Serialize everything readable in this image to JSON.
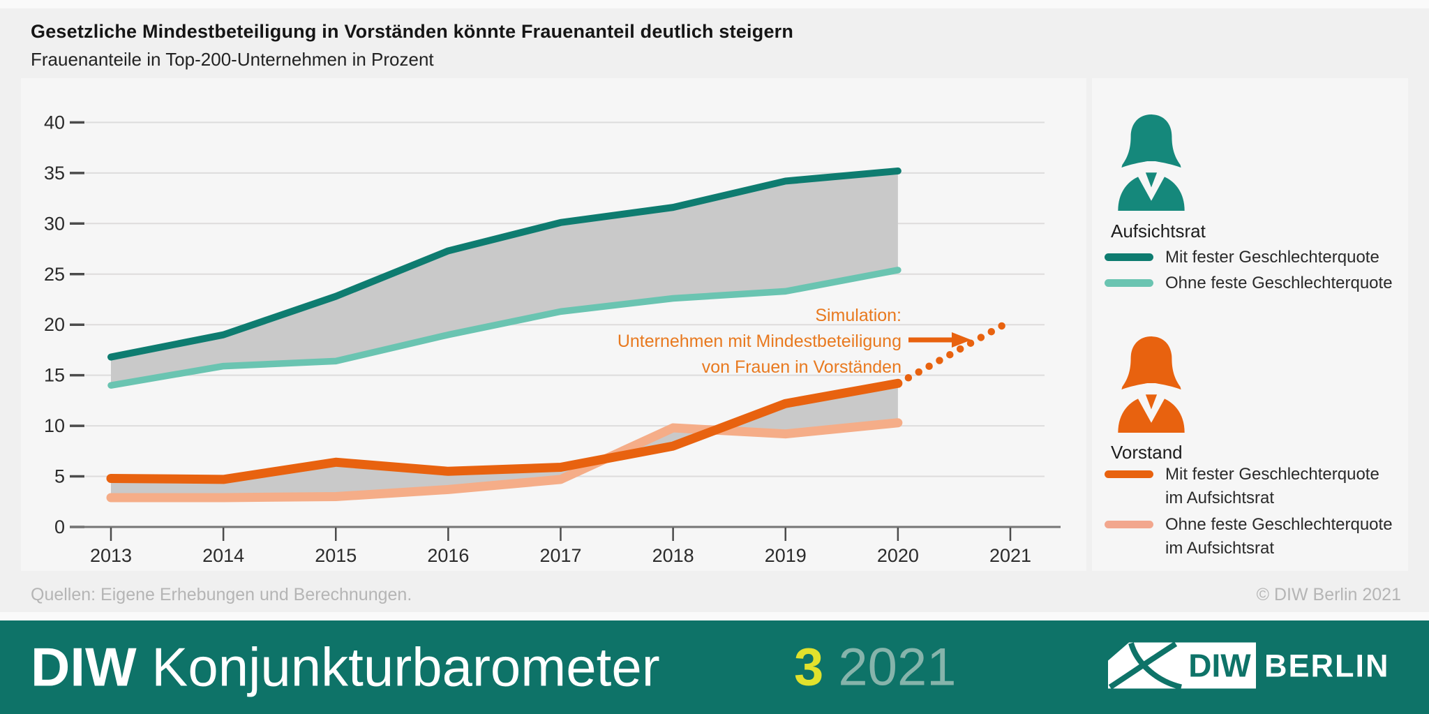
{
  "header": {
    "title": "Gesetzliche Mindestbeteiligung in Vorständen könnte Frauenanteil deutlich steigern",
    "subtitle": "Frauenanteile in Top-200-Unternehmen in Prozent"
  },
  "chart_data": {
    "type": "line",
    "x": [
      2013,
      2014,
      2015,
      2016,
      2017,
      2018,
      2019,
      2020
    ],
    "xticks": [
      2013,
      2014,
      2015,
      2016,
      2017,
      2018,
      2019,
      2020,
      2021
    ],
    "yticks": [
      0,
      5,
      10,
      15,
      20,
      25,
      30,
      35,
      40
    ],
    "ylim": [
      0,
      40
    ],
    "grid": "horizontal",
    "series": [
      {
        "name": "aufsichtsrat-mit-fester-geschlechterquote",
        "label": "Aufsichtsrat – Mit fester Geschlechterquote",
        "color": "#0E7C70",
        "values": [
          16.8,
          19.0,
          22.8,
          27.3,
          30.1,
          31.6,
          34.2,
          35.2
        ]
      },
      {
        "name": "aufsichtsrat-ohne-feste-geschlechterquote",
        "label": "Aufsichtsrat – Ohne feste Geschlechterquote",
        "color": "#6AC4B1",
        "values": [
          14.0,
          15.9,
          16.4,
          19.0,
          21.3,
          22.6,
          23.3,
          25.4
        ]
      },
      {
        "name": "vorstand-mit-fester-geschlechterquote",
        "label": "Vorstand – Mit fester Geschlechterquote im Aufsichtsrat",
        "color": "#E8620F",
        "values": [
          4.8,
          4.7,
          6.4,
          5.5,
          5.9,
          8.0,
          12.2,
          14.2
        ]
      },
      {
        "name": "vorstand-ohne-feste-geschlechterquote",
        "label": "Vorstand – Ohne feste Geschlechterquote im Aufsichtsrat",
        "color": "#F5AD88",
        "values": [
          2.9,
          2.9,
          3.0,
          3.7,
          4.7,
          9.8,
          9.2,
          10.3
        ]
      }
    ],
    "bands": [
      {
        "upper": 0,
        "lower": 1,
        "color": "#C9C9C9"
      },
      {
        "upper": 2,
        "lower": 3,
        "color": "#C9C9C9"
      }
    ],
    "simulation": {
      "series": "vorstand-mit-fester-geschlechterquote",
      "style": "dotted",
      "from": {
        "x": 2020,
        "y": 14.2
      },
      "to": {
        "x": 2021,
        "y": 20.3
      },
      "color": "#E8620F"
    },
    "annotation": {
      "line1": "Simulation:",
      "line2": "Unternehmen mit Mindestbeteiligung",
      "line3": "von Frauen in Vorständen",
      "color": "#E8791F"
    }
  },
  "legend": {
    "aufsichtsrat": {
      "title": "Aufsichtsrat",
      "icon": "woman-silhouette",
      "icon_color": "#15887B",
      "rows": [
        {
          "label": "Mit fester Geschlechterquote",
          "color": "#0E7C70"
        },
        {
          "label": "Ohne feste Geschlechterquote",
          "color": "#6AC4B1"
        }
      ]
    },
    "vorstand": {
      "title": "Vorstand",
      "icon": "woman-silhouette",
      "icon_color": "#E8620F",
      "rows": [
        {
          "label_line1": "Mit fester Geschlechterquote",
          "label_line2": "im Aufsichtsrat",
          "color": "#E8620F"
        },
        {
          "label_line1": "Ohne feste Geschlechterquote",
          "label_line2": "im Aufsichtsrat",
          "color": "#F2A78E"
        }
      ]
    }
  },
  "source": "Quellen: Eigene Erhebungen und Berechnungen.",
  "copyright": "© DIW Berlin 2021",
  "footer": {
    "background": "#0E7368",
    "brand_bold": "DIW",
    "brand_regular": "Konjunkturbarometer",
    "issue_number": "3",
    "issue_number_color": "#E2E12C",
    "issue_year": "2021",
    "issue_year_color": "#86B4AB",
    "logo": {
      "diw": "DIW",
      "berlin": "BERLIN"
    }
  }
}
